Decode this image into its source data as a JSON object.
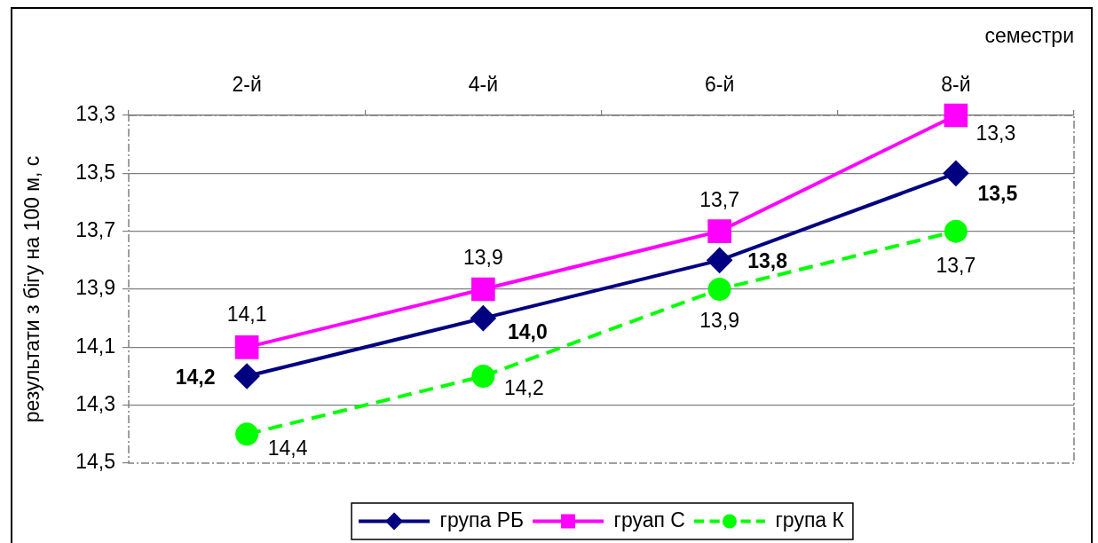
{
  "chart_data": {
    "type": "line",
    "xlabel": "семестри",
    "ylabel": "результати з бігу на 100 м, с",
    "categories": [
      "2-й",
      "4-й",
      "6-й",
      "8-й"
    ],
    "ylim": [
      14.5,
      13.3
    ],
    "yticks": [
      {
        "value": 13.3,
        "label": "13,3"
      },
      {
        "value": 13.5,
        "label": "13,5"
      },
      {
        "value": 13.7,
        "label": "13,7"
      },
      {
        "value": 13.9,
        "label": "13,9"
      },
      {
        "value": 14.1,
        "label": "14,1"
      },
      {
        "value": 14.3,
        "label": "14,3"
      },
      {
        "value": 14.5,
        "label": "14,5"
      }
    ],
    "grid": "y",
    "legend": "bottom",
    "series": [
      {
        "name": "група РБ",
        "color": "#000080",
        "marker": "diamond",
        "line_style": "solid",
        "values": [
          14.2,
          14.0,
          13.8,
          13.5
        ],
        "value_labels": [
          "14,2",
          "14,0",
          "13,8",
          "13,5"
        ]
      },
      {
        "name": "груап С",
        "color": "#ff00ff",
        "marker": "square",
        "line_style": "solid",
        "values": [
          14.1,
          13.9,
          13.7,
          13.3
        ],
        "value_labels": [
          "14,1",
          "13,9",
          "13,7",
          "13,3"
        ]
      },
      {
        "name": "група К",
        "color": "#00ff00",
        "marker": "circle",
        "line_style": "dashed",
        "values": [
          14.4,
          14.2,
          13.9,
          13.7
        ],
        "value_labels": [
          "14,4",
          "14,2",
          "13,9",
          "13,7"
        ]
      }
    ]
  }
}
